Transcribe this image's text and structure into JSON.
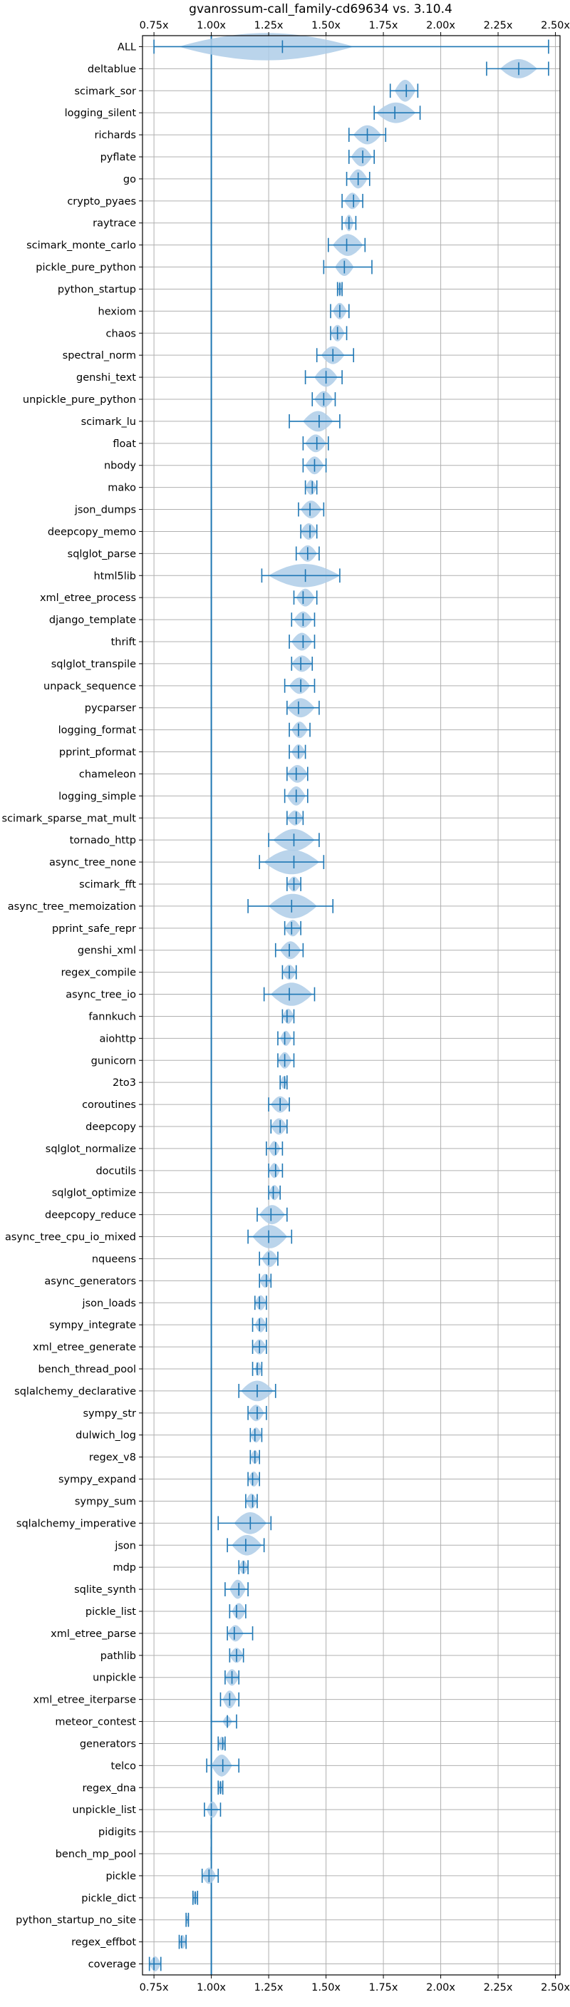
{
  "chart_data": {
    "type": "violin",
    "title": "gvanrossum-call_family-cd69634 vs. 3.10.4",
    "xlabel": "",
    "ylabel": "",
    "xlim": [
      0.7,
      2.52
    ],
    "x_ticks": [
      0.75,
      1.0,
      1.25,
      1.5,
      1.75,
      2.0,
      2.25,
      2.5
    ],
    "x_tick_labels": [
      "0.75x",
      "1.00x",
      "1.25x",
      "1.50x",
      "1.75x",
      "2.00x",
      "2.25x",
      "2.50x"
    ],
    "x_ticks_top_and_bottom": true,
    "reference_line_x": 1.0,
    "grid": true,
    "colors": {
      "violin_fill": "#aecde8",
      "whisker": "#1f77b4",
      "reference_line": "#1f77b4",
      "grid": "#b0b0b0"
    },
    "series": [
      {
        "name": "ALL",
        "min": 0.75,
        "median": 1.31,
        "max": 2.47,
        "low": 0.86,
        "high": 1.62,
        "width": 1.0
      },
      {
        "name": "deltablue",
        "min": 2.2,
        "median": 2.34,
        "max": 2.47,
        "low": 2.26,
        "high": 2.42,
        "width": 0.7
      },
      {
        "name": "scimark_sor",
        "min": 1.78,
        "median": 1.85,
        "max": 1.9,
        "low": 1.8,
        "high": 1.89,
        "width": 0.8
      },
      {
        "name": "logging_silent",
        "min": 1.71,
        "median": 1.8,
        "max": 1.91,
        "low": 1.72,
        "high": 1.89,
        "width": 0.75
      },
      {
        "name": "richards",
        "min": 1.6,
        "median": 1.68,
        "max": 1.76,
        "low": 1.62,
        "high": 1.74,
        "width": 0.7
      },
      {
        "name": "pyflate",
        "min": 1.6,
        "median": 1.66,
        "max": 1.71,
        "low": 1.61,
        "high": 1.7,
        "width": 0.7
      },
      {
        "name": "go",
        "min": 1.59,
        "median": 1.64,
        "max": 1.69,
        "low": 1.6,
        "high": 1.68,
        "width": 0.7
      },
      {
        "name": "crypto_pyaes",
        "min": 1.57,
        "median": 1.62,
        "max": 1.66,
        "low": 1.58,
        "high": 1.65,
        "width": 0.6
      },
      {
        "name": "raytrace",
        "min": 1.57,
        "median": 1.6,
        "max": 1.63,
        "low": 1.58,
        "high": 1.62,
        "width": 0.6
      },
      {
        "name": "scimark_monte_carlo",
        "min": 1.51,
        "median": 1.59,
        "max": 1.67,
        "low": 1.53,
        "high": 1.66,
        "width": 0.8
      },
      {
        "name": "pickle_pure_python",
        "min": 1.49,
        "median": 1.58,
        "max": 1.7,
        "low": 1.54,
        "high": 1.62,
        "width": 0.65
      },
      {
        "name": "python_startup",
        "min": 1.55,
        "median": 1.56,
        "max": 1.57,
        "low": 1.55,
        "high": 1.57,
        "width": 0.55
      },
      {
        "name": "hexiom",
        "min": 1.52,
        "median": 1.56,
        "max": 1.6,
        "low": 1.53,
        "high": 1.59,
        "width": 0.6
      },
      {
        "name": "chaos",
        "min": 1.52,
        "median": 1.55,
        "max": 1.59,
        "low": 1.52,
        "high": 1.58,
        "width": 0.6
      },
      {
        "name": "spectral_norm",
        "min": 1.46,
        "median": 1.53,
        "max": 1.62,
        "low": 1.48,
        "high": 1.58,
        "width": 0.65
      },
      {
        "name": "genshi_text",
        "min": 1.41,
        "median": 1.5,
        "max": 1.57,
        "low": 1.45,
        "high": 1.55,
        "width": 0.7
      },
      {
        "name": "unpickle_pure_python",
        "min": 1.44,
        "median": 1.49,
        "max": 1.54,
        "low": 1.45,
        "high": 1.53,
        "width": 0.6
      },
      {
        "name": "scimark_lu",
        "min": 1.34,
        "median": 1.47,
        "max": 1.56,
        "low": 1.4,
        "high": 1.53,
        "width": 0.75
      },
      {
        "name": "float",
        "min": 1.4,
        "median": 1.46,
        "max": 1.51,
        "low": 1.41,
        "high": 1.5,
        "width": 0.65
      },
      {
        "name": "nbody",
        "min": 1.4,
        "median": 1.45,
        "max": 1.5,
        "low": 1.41,
        "high": 1.49,
        "width": 0.65
      },
      {
        "name": "mako",
        "min": 1.41,
        "median": 1.44,
        "max": 1.46,
        "low": 1.41,
        "high": 1.46,
        "width": 0.55
      },
      {
        "name": "json_dumps",
        "min": 1.38,
        "median": 1.43,
        "max": 1.49,
        "low": 1.39,
        "high": 1.48,
        "width": 0.65
      },
      {
        "name": "deepcopy_memo",
        "min": 1.39,
        "median": 1.43,
        "max": 1.46,
        "low": 1.39,
        "high": 1.46,
        "width": 0.6
      },
      {
        "name": "sqlglot_parse",
        "min": 1.37,
        "median": 1.42,
        "max": 1.47,
        "low": 1.38,
        "high": 1.46,
        "width": 0.6
      },
      {
        "name": "html5lib",
        "min": 1.22,
        "median": 1.41,
        "max": 1.56,
        "low": 1.25,
        "high": 1.56,
        "width": 0.85
      },
      {
        "name": "xml_etree_process",
        "min": 1.36,
        "median": 1.4,
        "max": 1.46,
        "low": 1.37,
        "high": 1.45,
        "width": 0.65
      },
      {
        "name": "django_template",
        "min": 1.35,
        "median": 1.4,
        "max": 1.45,
        "low": 1.36,
        "high": 1.44,
        "width": 0.6
      },
      {
        "name": "thrift",
        "min": 1.34,
        "median": 1.4,
        "max": 1.45,
        "low": 1.35,
        "high": 1.44,
        "width": 0.65
      },
      {
        "name": "sqlglot_transpile",
        "min": 1.35,
        "median": 1.39,
        "max": 1.44,
        "low": 1.35,
        "high": 1.44,
        "width": 0.6
      },
      {
        "name": "unpack_sequence",
        "min": 1.32,
        "median": 1.39,
        "max": 1.45,
        "low": 1.34,
        "high": 1.43,
        "width": 0.6
      },
      {
        "name": "pycparser",
        "min": 1.33,
        "median": 1.38,
        "max": 1.47,
        "low": 1.33,
        "high": 1.45,
        "width": 0.7
      },
      {
        "name": "logging_format",
        "min": 1.34,
        "median": 1.38,
        "max": 1.43,
        "low": 1.35,
        "high": 1.42,
        "width": 0.6
      },
      {
        "name": "pprint_pformat",
        "min": 1.34,
        "median": 1.38,
        "max": 1.41,
        "low": 1.35,
        "high": 1.41,
        "width": 0.55
      },
      {
        "name": "chameleon",
        "min": 1.33,
        "median": 1.37,
        "max": 1.42,
        "low": 1.33,
        "high": 1.42,
        "width": 0.65
      },
      {
        "name": "logging_simple",
        "min": 1.32,
        "median": 1.37,
        "max": 1.42,
        "low": 1.33,
        "high": 1.41,
        "width": 0.7
      },
      {
        "name": "scimark_sparse_mat_mult",
        "min": 1.33,
        "median": 1.37,
        "max": 1.4,
        "low": 1.33,
        "high": 1.4,
        "width": 0.55
      },
      {
        "name": "tornado_http",
        "min": 1.25,
        "median": 1.36,
        "max": 1.47,
        "low": 1.27,
        "high": 1.45,
        "width": 0.8
      },
      {
        "name": "async_tree_none",
        "min": 1.21,
        "median": 1.36,
        "max": 1.49,
        "low": 1.23,
        "high": 1.47,
        "width": 0.9
      },
      {
        "name": "scimark_fft",
        "min": 1.33,
        "median": 1.36,
        "max": 1.39,
        "low": 1.33,
        "high": 1.39,
        "width": 0.55
      },
      {
        "name": "async_tree_memoization",
        "min": 1.16,
        "median": 1.35,
        "max": 1.53,
        "low": 1.25,
        "high": 1.46,
        "width": 0.9
      },
      {
        "name": "pprint_safe_repr",
        "min": 1.32,
        "median": 1.35,
        "max": 1.39,
        "low": 1.32,
        "high": 1.39,
        "width": 0.6
      },
      {
        "name": "genshi_xml",
        "min": 1.28,
        "median": 1.34,
        "max": 1.4,
        "low": 1.3,
        "high": 1.39,
        "width": 0.65
      },
      {
        "name": "regex_compile",
        "min": 1.31,
        "median": 1.34,
        "max": 1.37,
        "low": 1.31,
        "high": 1.37,
        "width": 0.55
      },
      {
        "name": "async_tree_io",
        "min": 1.23,
        "median": 1.34,
        "max": 1.45,
        "low": 1.26,
        "high": 1.44,
        "width": 0.85
      },
      {
        "name": "fannkuch",
        "min": 1.31,
        "median": 1.33,
        "max": 1.36,
        "low": 1.31,
        "high": 1.36,
        "width": 0.55
      },
      {
        "name": "aiohttp",
        "min": 1.29,
        "median": 1.32,
        "max": 1.36,
        "low": 1.3,
        "high": 1.35,
        "width": 0.55
      },
      {
        "name": "gunicorn",
        "min": 1.29,
        "median": 1.32,
        "max": 1.36,
        "low": 1.29,
        "high": 1.35,
        "width": 0.6
      },
      {
        "name": "2to3",
        "min": 1.3,
        "median": 1.32,
        "max": 1.33,
        "low": 1.3,
        "high": 1.33,
        "width": 0.45
      },
      {
        "name": "coroutines",
        "min": 1.25,
        "median": 1.3,
        "max": 1.34,
        "low": 1.26,
        "high": 1.34,
        "width": 0.6
      },
      {
        "name": "deepcopy",
        "min": 1.26,
        "median": 1.3,
        "max": 1.33,
        "low": 1.26,
        "high": 1.33,
        "width": 0.6
      },
      {
        "name": "sqlglot_normalize",
        "min": 1.24,
        "median": 1.28,
        "max": 1.31,
        "low": 1.25,
        "high": 1.3,
        "width": 0.55
      },
      {
        "name": "docutils",
        "min": 1.25,
        "median": 1.28,
        "max": 1.31,
        "low": 1.25,
        "high": 1.3,
        "width": 0.55
      },
      {
        "name": "sqlglot_optimize",
        "min": 1.25,
        "median": 1.27,
        "max": 1.3,
        "low": 1.25,
        "high": 1.3,
        "width": 0.55
      },
      {
        "name": "deepcopy_reduce",
        "min": 1.2,
        "median": 1.26,
        "max": 1.33,
        "low": 1.21,
        "high": 1.32,
        "width": 0.7
      },
      {
        "name": "async_tree_cpu_io_mixed",
        "min": 1.16,
        "median": 1.25,
        "max": 1.35,
        "low": 1.18,
        "high": 1.33,
        "width": 0.85
      },
      {
        "name": "nqueens",
        "min": 1.21,
        "median": 1.25,
        "max": 1.29,
        "low": 1.22,
        "high": 1.29,
        "width": 0.6
      },
      {
        "name": "async_generators",
        "min": 1.21,
        "median": 1.24,
        "max": 1.26,
        "low": 1.21,
        "high": 1.26,
        "width": 0.5
      },
      {
        "name": "json_loads",
        "min": 1.19,
        "median": 1.21,
        "max": 1.24,
        "low": 1.19,
        "high": 1.24,
        "width": 0.55
      },
      {
        "name": "sympy_integrate",
        "min": 1.18,
        "median": 1.21,
        "max": 1.24,
        "low": 1.19,
        "high": 1.24,
        "width": 0.55
      },
      {
        "name": "xml_etree_generate",
        "min": 1.18,
        "median": 1.21,
        "max": 1.24,
        "low": 1.18,
        "high": 1.24,
        "width": 0.55
      },
      {
        "name": "bench_thread_pool",
        "min": 1.18,
        "median": 1.2,
        "max": 1.22,
        "low": 1.19,
        "high": 1.22,
        "width": 0.5
      },
      {
        "name": "sqlalchemy_declarative",
        "min": 1.12,
        "median": 1.2,
        "max": 1.28,
        "low": 1.13,
        "high": 1.27,
        "width": 0.75
      },
      {
        "name": "sympy_str",
        "min": 1.16,
        "median": 1.2,
        "max": 1.24,
        "low": 1.16,
        "high": 1.23,
        "width": 0.6
      },
      {
        "name": "dulwich_log",
        "min": 1.17,
        "median": 1.19,
        "max": 1.22,
        "low": 1.17,
        "high": 1.22,
        "width": 0.55
      },
      {
        "name": "regex_v8",
        "min": 1.17,
        "median": 1.19,
        "max": 1.21,
        "low": 1.17,
        "high": 1.21,
        "width": 0.5
      },
      {
        "name": "sympy_expand",
        "min": 1.16,
        "median": 1.18,
        "max": 1.21,
        "low": 1.16,
        "high": 1.21,
        "width": 0.55
      },
      {
        "name": "sympy_sum",
        "min": 1.15,
        "median": 1.18,
        "max": 1.2,
        "low": 1.15,
        "high": 1.2,
        "width": 0.55
      },
      {
        "name": "sqlalchemy_imperative",
        "min": 1.03,
        "median": 1.17,
        "max": 1.26,
        "low": 1.1,
        "high": 1.24,
        "width": 0.8
      },
      {
        "name": "json",
        "min": 1.07,
        "median": 1.15,
        "max": 1.23,
        "low": 1.09,
        "high": 1.22,
        "width": 0.75
      },
      {
        "name": "mdp",
        "min": 1.12,
        "median": 1.14,
        "max": 1.16,
        "low": 1.12,
        "high": 1.16,
        "width": 0.5
      },
      {
        "name": "sqlite_synth",
        "min": 1.06,
        "median": 1.12,
        "max": 1.16,
        "low": 1.08,
        "high": 1.15,
        "width": 0.7
      },
      {
        "name": "pickle_list",
        "min": 1.08,
        "median": 1.11,
        "max": 1.15,
        "low": 1.09,
        "high": 1.15,
        "width": 0.6
      },
      {
        "name": "xml_etree_parse",
        "min": 1.07,
        "median": 1.1,
        "max": 1.18,
        "low": 1.07,
        "high": 1.14,
        "width": 0.6
      },
      {
        "name": "pathlib",
        "min": 1.08,
        "median": 1.11,
        "max": 1.14,
        "low": 1.08,
        "high": 1.14,
        "width": 0.55
      },
      {
        "name": "unpickle",
        "min": 1.06,
        "median": 1.09,
        "max": 1.12,
        "low": 1.06,
        "high": 1.12,
        "width": 0.6
      },
      {
        "name": "xml_etree_iterparse",
        "min": 1.04,
        "median": 1.08,
        "max": 1.12,
        "low": 1.05,
        "high": 1.11,
        "width": 0.65
      },
      {
        "name": "meteor_contest",
        "min": 1.0,
        "median": 1.07,
        "max": 1.11,
        "low": 1.05,
        "high": 1.09,
        "width": 0.4
      },
      {
        "name": "generators",
        "min": 1.03,
        "median": 1.05,
        "max": 1.06,
        "low": 1.03,
        "high": 1.06,
        "width": 0.5
      },
      {
        "name": "telco",
        "min": 0.98,
        "median": 1.05,
        "max": 1.12,
        "low": 1.0,
        "high": 1.09,
        "width": 0.8
      },
      {
        "name": "regex_dna",
        "min": 1.03,
        "median": 1.04,
        "max": 1.05,
        "low": 1.03,
        "high": 1.05,
        "width": 0.5
      },
      {
        "name": "unpickle_list",
        "min": 0.97,
        "median": 1.0,
        "max": 1.04,
        "low": 0.98,
        "high": 1.03,
        "width": 0.6
      },
      {
        "name": "pidigits",
        "min": 1.0,
        "median": 1.0,
        "max": 1.0,
        "low": 1.0,
        "high": 1.0,
        "width": 0.0
      },
      {
        "name": "bench_mp_pool",
        "min": 1.0,
        "median": 1.0,
        "max": 1.0,
        "low": 1.0,
        "high": 1.0,
        "width": 0.0
      },
      {
        "name": "pickle",
        "min": 0.96,
        "median": 0.99,
        "max": 1.03,
        "low": 0.96,
        "high": 1.02,
        "width": 0.6
      },
      {
        "name": "pickle_dict",
        "min": 0.92,
        "median": 0.93,
        "max": 0.94,
        "low": 0.92,
        "high": 0.94,
        "width": 0.5
      },
      {
        "name": "python_startup_no_site",
        "min": 0.89,
        "median": 0.9,
        "max": 0.9,
        "low": 0.89,
        "high": 0.9,
        "width": 0.3
      },
      {
        "name": "regex_effbot",
        "min": 0.86,
        "median": 0.87,
        "max": 0.89,
        "low": 0.86,
        "high": 0.89,
        "width": 0.5
      },
      {
        "name": "coverage",
        "min": 0.73,
        "median": 0.75,
        "max": 0.78,
        "low": 0.73,
        "high": 0.78,
        "width": 0.55
      }
    ]
  }
}
